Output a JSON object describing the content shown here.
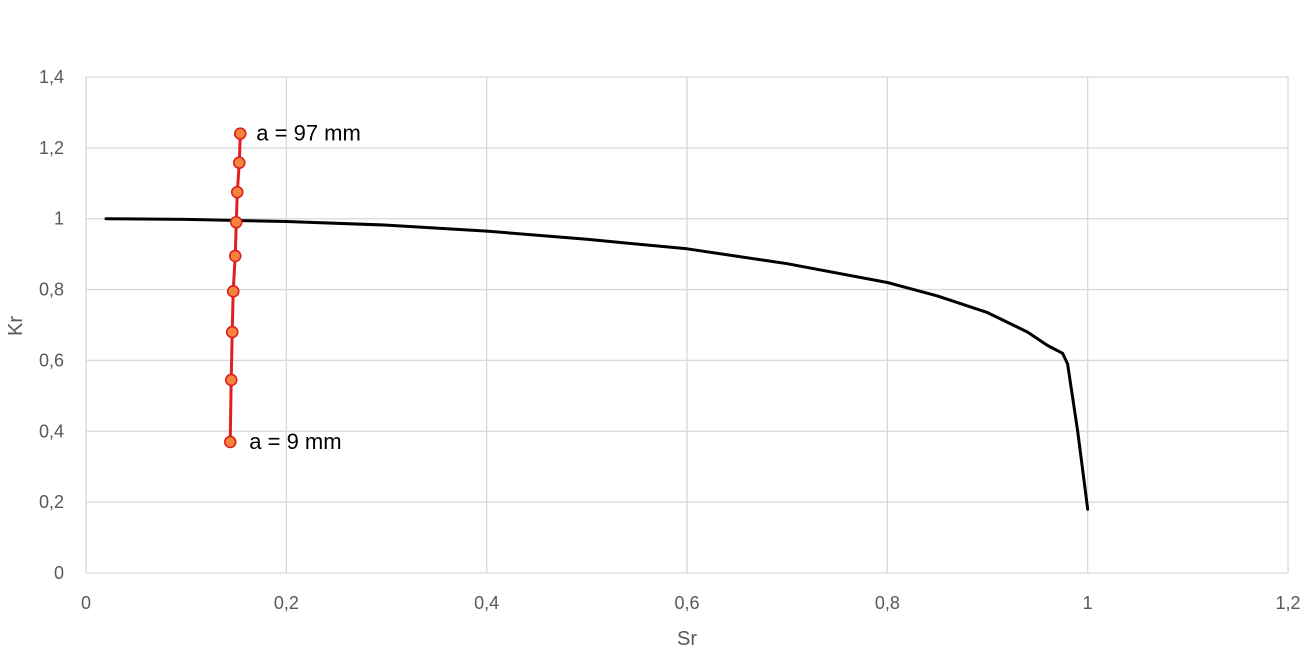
{
  "chart_data": {
    "type": "line",
    "title": "",
    "xlabel": "Sr",
    "ylabel": "Kr",
    "xlim": [
      0,
      1.2
    ],
    "ylim": [
      0,
      1.4
    ],
    "x_ticks": [
      0,
      0.2,
      0.4,
      0.6,
      0.8,
      1,
      1.2
    ],
    "x_tick_labels": [
      "0",
      "0,2",
      "0,4",
      "0,6",
      "0,8",
      "1",
      "1,2"
    ],
    "y_ticks": [
      0,
      0.2,
      0.4,
      0.6,
      0.8,
      1,
      1.2,
      1.4
    ],
    "y_tick_labels": [
      "0",
      "0,2",
      "0,4",
      "0,6",
      "0,8",
      "1",
      "1,2",
      "1,4"
    ],
    "grid": true,
    "legend": "none",
    "series": [
      {
        "color": "#000000",
        "marker": "none",
        "x": [
          0.02,
          0.1,
          0.2,
          0.3,
          0.4,
          0.5,
          0.6,
          0.7,
          0.8,
          0.85,
          0.9,
          0.94,
          0.96,
          0.975,
          0.98,
          0.99,
          1.0
        ],
        "y": [
          1.0,
          0.998,
          0.992,
          0.982,
          0.965,
          0.942,
          0.915,
          0.873,
          0.82,
          0.782,
          0.735,
          0.68,
          0.642,
          0.62,
          0.59,
          0.4,
          0.18
        ]
      },
      {
        "color": "#e02020",
        "marker": "circle",
        "marker_fill": "#f4843c",
        "x": [
          0.144,
          0.145,
          0.146,
          0.147,
          0.149,
          0.15,
          0.151,
          0.153,
          0.154
        ],
        "y": [
          0.37,
          0.545,
          0.68,
          0.795,
          0.895,
          0.99,
          1.075,
          1.158,
          1.24
        ]
      }
    ],
    "annotations": [
      {
        "text": "a = 97 mm",
        "x": 0.17,
        "y": 1.24
      },
      {
        "text": "a = 9 mm",
        "x": 0.163,
        "y": 0.37
      }
    ]
  }
}
